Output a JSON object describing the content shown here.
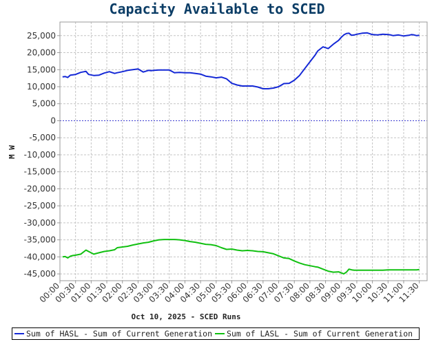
{
  "colors": {
    "hasl": "#1428d6",
    "lasl": "#10c010",
    "zero_line": "#3a3ad0",
    "grid": "#c4c4c4",
    "title": "#0b3d66"
  },
  "chart_data": {
    "type": "line",
    "title": "Capacity Available to SCED",
    "xlabel": "Oct 10, 2025 - SCED Runs",
    "ylabel": "M W",
    "ylim": [
      -47000,
      29000
    ],
    "xlim_minutes": [
      0,
      705
    ],
    "y_ticks": [
      "25,000",
      "20,000",
      "15,000",
      "10,000",
      "5,000",
      "0",
      "-5,000",
      "-10,000",
      "-15,000",
      "-20,000",
      "-25,000",
      "-30,000",
      "-35,000",
      "-40,000",
      "-45,000"
    ],
    "y_tick_values": [
      25000,
      20000,
      15000,
      10000,
      5000,
      0,
      -5000,
      -10000,
      -15000,
      -20000,
      -25000,
      -30000,
      -35000,
      -40000,
      -45000
    ],
    "x_ticks": [
      "00:00",
      "00:30",
      "01:00",
      "01:30",
      "02:00",
      "02:30",
      "03:00",
      "03:30",
      "04:00",
      "04:30",
      "05:00",
      "05:30",
      "06:00",
      "06:30",
      "07:00",
      "07:30",
      "08:00",
      "08:30",
      "09:00",
      "09:30",
      "10:00",
      "10:30",
      "11:00",
      "11:30"
    ],
    "grid": true,
    "legend_position": "bottom",
    "x": [
      "00:05",
      "00:10",
      "00:15",
      "00:20",
      "00:25",
      "00:30",
      "00:40",
      "00:50",
      "00:55",
      "01:05",
      "01:15",
      "01:25",
      "01:35",
      "01:45",
      "01:50",
      "02:00",
      "02:10",
      "02:20",
      "02:30",
      "02:40",
      "02:50",
      "02:55",
      "03:00",
      "03:10",
      "03:20",
      "03:30",
      "03:40",
      "03:50",
      "04:00",
      "04:10",
      "04:20",
      "04:30",
      "04:40",
      "04:50",
      "05:00",
      "05:10",
      "05:20",
      "05:30",
      "05:40",
      "05:50",
      "06:00",
      "06:10",
      "06:20",
      "06:30",
      "06:40",
      "06:50",
      "07:00",
      "07:10",
      "07:20",
      "07:30",
      "07:40",
      "07:50",
      "08:00",
      "08:10",
      "08:15",
      "08:25",
      "08:35",
      "08:45",
      "08:55",
      "09:00",
      "09:05",
      "09:10",
      "09:15",
      "09:20",
      "09:25",
      "09:30",
      "09:40",
      "09:50",
      "10:00",
      "10:10",
      "10:20",
      "10:30",
      "10:35",
      "10:40",
      "10:50",
      "11:00",
      "11:10",
      "11:15",
      "11:20",
      "11:25",
      "11:30"
    ],
    "series": [
      {
        "name": "Sum of HASL - Sum of Current Generation",
        "values": [
          12900,
          13000,
          12700,
          13400,
          13500,
          13600,
          14200,
          14500,
          13600,
          13300,
          13400,
          14000,
          14400,
          13900,
          14100,
          14400,
          14800,
          15000,
          15200,
          14300,
          14800,
          14700,
          14800,
          14900,
          14900,
          14900,
          14100,
          14200,
          14100,
          14100,
          13900,
          13700,
          13100,
          12900,
          12600,
          12800,
          12300,
          11000,
          10500,
          10200,
          10200,
          10200,
          9900,
          9400,
          9400,
          9600,
          10000,
          10900,
          11000,
          11900,
          13300,
          15300,
          17300,
          19300,
          20500,
          21700,
          21200,
          22500,
          23600,
          24500,
          25200,
          25600,
          25700,
          25100,
          25200,
          25400,
          25700,
          25800,
          25300,
          25200,
          25400,
          25300,
          25200,
          25000,
          25200,
          24900,
          25100,
          25300,
          25200,
          25000,
          25100
        ]
      },
      {
        "name": "Sum of LASL - Sum of Current Generation",
        "values": [
          -40000,
          -39900,
          -40300,
          -39800,
          -39600,
          -39500,
          -39200,
          -38000,
          -38400,
          -39200,
          -38800,
          -38400,
          -38200,
          -37900,
          -37300,
          -37100,
          -36900,
          -36500,
          -36200,
          -35900,
          -35700,
          -35500,
          -35300,
          -35000,
          -34900,
          -34900,
          -34900,
          -35000,
          -35200,
          -35500,
          -35700,
          -36000,
          -36300,
          -36400,
          -36700,
          -37300,
          -37800,
          -37700,
          -38000,
          -38200,
          -38100,
          -38200,
          -38400,
          -38500,
          -38800,
          -39100,
          -39700,
          -40300,
          -40500,
          -41200,
          -41800,
          -42300,
          -42600,
          -42900,
          -43000,
          -43600,
          -44200,
          -44500,
          -44400,
          -44700,
          -45000,
          -44500,
          -43600,
          -43800,
          -43900,
          -43900,
          -43900,
          -43900,
          -43900,
          -43900,
          -43900,
          -43800,
          -43800,
          -43800,
          -43800,
          -43800,
          -43800,
          -43800,
          -43800,
          -43800,
          -43700
        ]
      }
    ]
  }
}
